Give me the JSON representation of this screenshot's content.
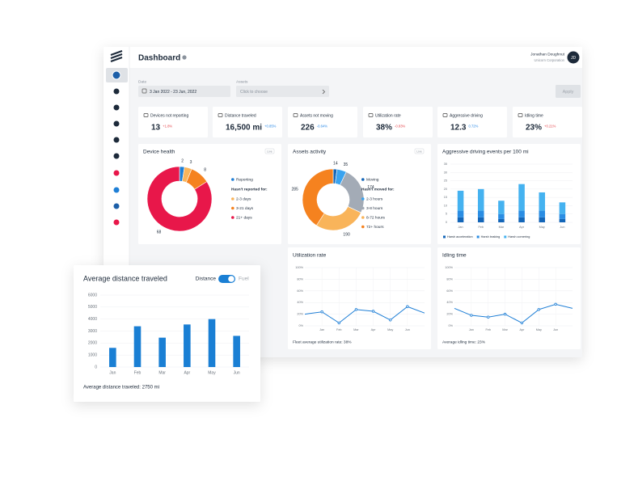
{
  "header": {
    "title": "Dashboard",
    "user_name": "Jonathan Doughnut",
    "user_company": "Unicorn Corporation",
    "avatar": "JD"
  },
  "filters": {
    "date_label": "Date",
    "date_value": "3 Jan 2022 - 23 Jun, 2022",
    "assets_label": "Assets",
    "assets_placeholder": "Click to choose",
    "apply": "Apply"
  },
  "kpis": [
    {
      "label": "Devices not reporting",
      "value": "13",
      "change": "+1.8%",
      "change_color": "#e5484d"
    },
    {
      "label": "Distance traveled",
      "value": "16,500 mi",
      "change": "+0.85%",
      "change_color": "#2b8ae6"
    },
    {
      "label": "Assets not moving",
      "value": "226",
      "change": "-0.64%",
      "change_color": "#2b8ae6"
    },
    {
      "label": "Utilization rate",
      "value": "38%",
      "change": "-0.83%",
      "change_color": "#e5484d"
    },
    {
      "label": "Aggressive driving",
      "value": "12.3",
      "change": "0.72%",
      "change_color": "#2b8ae6"
    },
    {
      "label": "Idling time",
      "value": "23%",
      "change": "+0.21%",
      "change_color": "#e5484d"
    }
  ],
  "device_health": {
    "type": "pie",
    "title": "Device health",
    "badge": "Live",
    "legend_heading": "Hasn't reported for:",
    "categories": [
      "Reporting",
      "2-3 days",
      "3-21 days",
      "21+ days"
    ],
    "values": [
      2,
      3,
      8,
      68
    ],
    "colors": [
      "#1f7fd6",
      "#f9b45a",
      "#f5821f",
      "#e8174a"
    ]
  },
  "assets_activity": {
    "type": "pie",
    "title": "Assets activity",
    "badge": "Live",
    "legend_heading": "Hasn't moved for:",
    "categories": [
      "Moving",
      "2-3 hours",
      "3-8 hours",
      "8-72 hours",
      "72+ hours"
    ],
    "values": [
      14,
      35,
      174,
      190,
      285
    ],
    "colors": [
      "#1466b8",
      "#3aa3ef",
      "#a3abb6",
      "#f9b45a",
      "#f5821f"
    ]
  },
  "aggressive_driving": {
    "type": "bar",
    "title": "Aggressive driving events per 100 mi",
    "categories": [
      "Jan",
      "Feb",
      "Mar",
      "Apr",
      "May",
      "Jun"
    ],
    "series": [
      {
        "name": "Harsh acceleration",
        "color": "#1466b8",
        "values": [
          3,
          3,
          2,
          3,
          3,
          2
        ]
      },
      {
        "name": "Harsh braking",
        "color": "#2a8de3",
        "values": [
          4,
          4,
          3,
          4,
          4,
          3
        ]
      },
      {
        "name": "Harsh cornering",
        "color": "#45b2f0",
        "values": [
          12,
          13,
          8,
          16,
          11,
          7
        ]
      }
    ],
    "ylim": [
      0,
      35
    ],
    "yticks": [
      0,
      5,
      10,
      15,
      20,
      25,
      30,
      35
    ],
    "grid": true
  },
  "utilization_rate": {
    "type": "line",
    "title": "Utilization rate",
    "color": "#1f7fd6",
    "categories": [
      null,
      "Jan",
      "Feb",
      "Mar",
      "Apr",
      "May",
      "Jun",
      null
    ],
    "values": [
      20,
      24,
      5,
      28,
      25,
      10,
      33,
      22
    ],
    "ylim": [
      0,
      100
    ],
    "yticks": [
      {
        "value": 0,
        "label": "0%"
      },
      {
        "value": 20,
        "label": "20%"
      },
      {
        "value": 40,
        "label": "40%"
      },
      {
        "value": 60,
        "label": "60%"
      },
      {
        "value": 80,
        "label": "80%"
      },
      {
        "value": 100,
        "label": "100%"
      }
    ],
    "grid": true,
    "footnote": "Fleet average utilization rate: 38%"
  },
  "idling_time": {
    "type": "line",
    "title": "Idling time",
    "color": "#1f7fd6",
    "categories": [
      null,
      "Jan",
      "Feb",
      "Mar",
      "Apr",
      "May",
      "Jun",
      null
    ],
    "values": [
      30,
      18,
      15,
      20,
      5,
      28,
      37,
      30
    ],
    "ylim": [
      0,
      100
    ],
    "yticks": [
      {
        "value": 0,
        "label": "0%"
      },
      {
        "value": 20,
        "label": "20%"
      },
      {
        "value": 40,
        "label": "40%"
      },
      {
        "value": 60,
        "label": "60%"
      },
      {
        "value": 80,
        "label": "80%"
      },
      {
        "value": 100,
        "label": "100%"
      }
    ],
    "grid": true,
    "footnote": "Average idling time: 23%"
  },
  "average_distance": {
    "type": "bar",
    "title": "Average distance traveled",
    "toggle_on": "Distance",
    "toggle_off": "Fuel",
    "categories": [
      "Jan",
      "Feb",
      "Mar",
      "Apr",
      "May",
      "Jun"
    ],
    "series": [
      {
        "color": "#1a7fd4",
        "values": [
          1600,
          3400,
          2450,
          3550,
          4000,
          2600
        ]
      }
    ],
    "ylim": [
      0,
      6000
    ],
    "yticks": [
      0,
      1000,
      2000,
      3000,
      4000,
      5000,
      6000
    ],
    "grid": true,
    "footnote": "Average distance traveled: 2750 mi"
  }
}
